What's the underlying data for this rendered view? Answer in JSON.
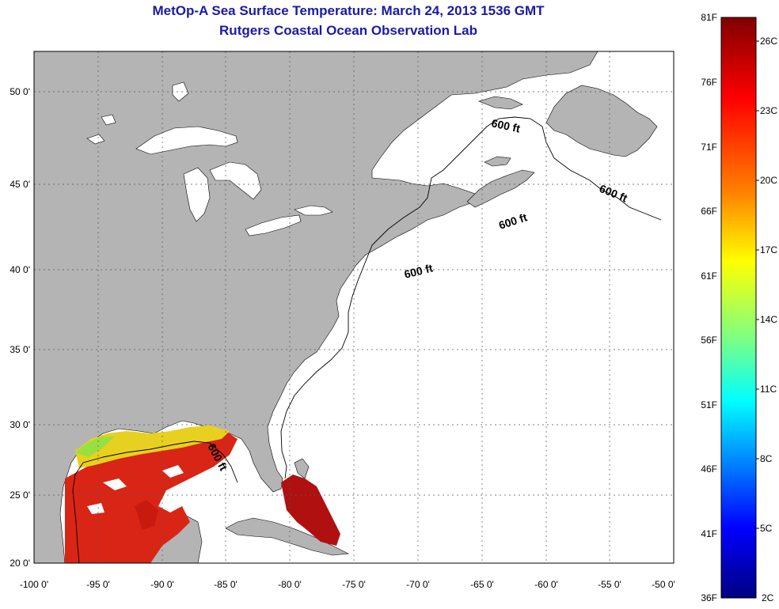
{
  "title": {
    "line1": "MetOp-A Sea Surface Temperature:  March 24, 2013 1536 GMT",
    "line2": "Rutgers Coastal Ocean Observation Lab"
  },
  "map": {
    "lon_ticks": [
      "-100 0'",
      "-95 0'",
      "-90 0'",
      "-85 0'",
      "-80 0'",
      "-75 0'",
      "-70 0'",
      "-65 0'",
      "-60 0'",
      "-55 0'",
      "-50 0'"
    ],
    "lat_ticks": [
      "50 0'",
      "45 0'",
      "40 0'",
      "35 0'",
      "30 0'",
      "25 0'",
      "20 0'"
    ],
    "contour_label": "600 ft",
    "colors": {
      "land": "#b4b4b4",
      "ocean": "#ffffff",
      "grid": "#555555"
    }
  },
  "colorbar": {
    "fahrenheit": [
      "81F",
      "76F",
      "71F",
      "66F",
      "61F",
      "56F",
      "51F",
      "46F",
      "41F",
      "36F"
    ],
    "celsius": [
      "26C",
      "23C",
      "20C",
      "17C",
      "14C",
      "11C",
      "8C",
      "5C",
      "2C"
    ],
    "gradient": [
      "#800000",
      "#ff0000",
      "#ff8000",
      "#ffff00",
      "#80ff80",
      "#00ffff",
      "#0080ff",
      "#0000ff",
      "#000080"
    ]
  }
}
